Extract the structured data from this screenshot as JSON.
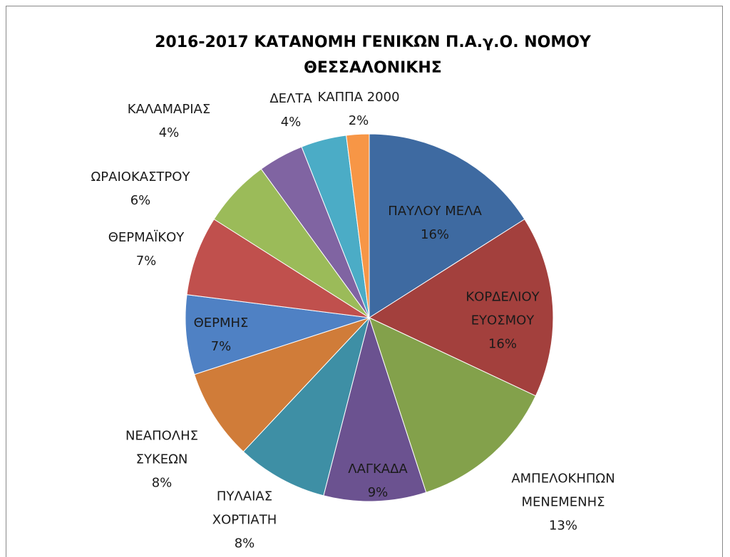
{
  "chart_data": {
    "type": "pie",
    "title": "2016-2017 ΚΑΤΑΝΟΜΗ ΓΕΝΙΚΩΝ Π.Α.γ.Ο. ΝΟΜΟΥ ΘΕΣΣΑΛΟΝΙΚΗΣ",
    "categories": [
      "ΠΑΥΛΟΥ ΜΕΛΑ",
      "ΚΟΡΔΕΛΙΟΥ ΕΥΟΣΜΟΥ",
      "ΑΜΠΕΛΟΚΗΠΩΝ ΜΕΝΕΜΕΝΗΣ",
      "ΛΑΓΚΑΔΑ",
      "ΠΥΛΑΙΑΣ ΧΟΡΤΙΑΤΗ",
      "ΝΕΑΠΟΛΗΣ ΣΥΚΕΩΝ",
      "ΘΕΡΜΗΣ",
      "ΘΕΡΜΑΪΚΟΥ",
      "ΩΡΑΙΟΚΑΣΤΡΟΥ",
      "ΚΑΛΑΜΑΡΙΑΣ",
      "ΔΕΛΤΑ",
      "ΚΑΠΠΑ 2000"
    ],
    "values": [
      16,
      16,
      13,
      9,
      8,
      8,
      7,
      7,
      6,
      4,
      4,
      2
    ],
    "value_labels": [
      "16%",
      "16%",
      "13%",
      "9%",
      "8%",
      "8%",
      "7%",
      "7%",
      "6%",
      "4%",
      "4%",
      "2%"
    ],
    "colors": [
      "#3e6aa1",
      "#a3403d",
      "#83a14b",
      "#6b5290",
      "#3e8fa5",
      "#d07c39",
      "#4f81c4",
      "#c0504d",
      "#9bbb59",
      "#8064a2",
      "#4bacc6",
      "#f79646"
    ]
  }
}
